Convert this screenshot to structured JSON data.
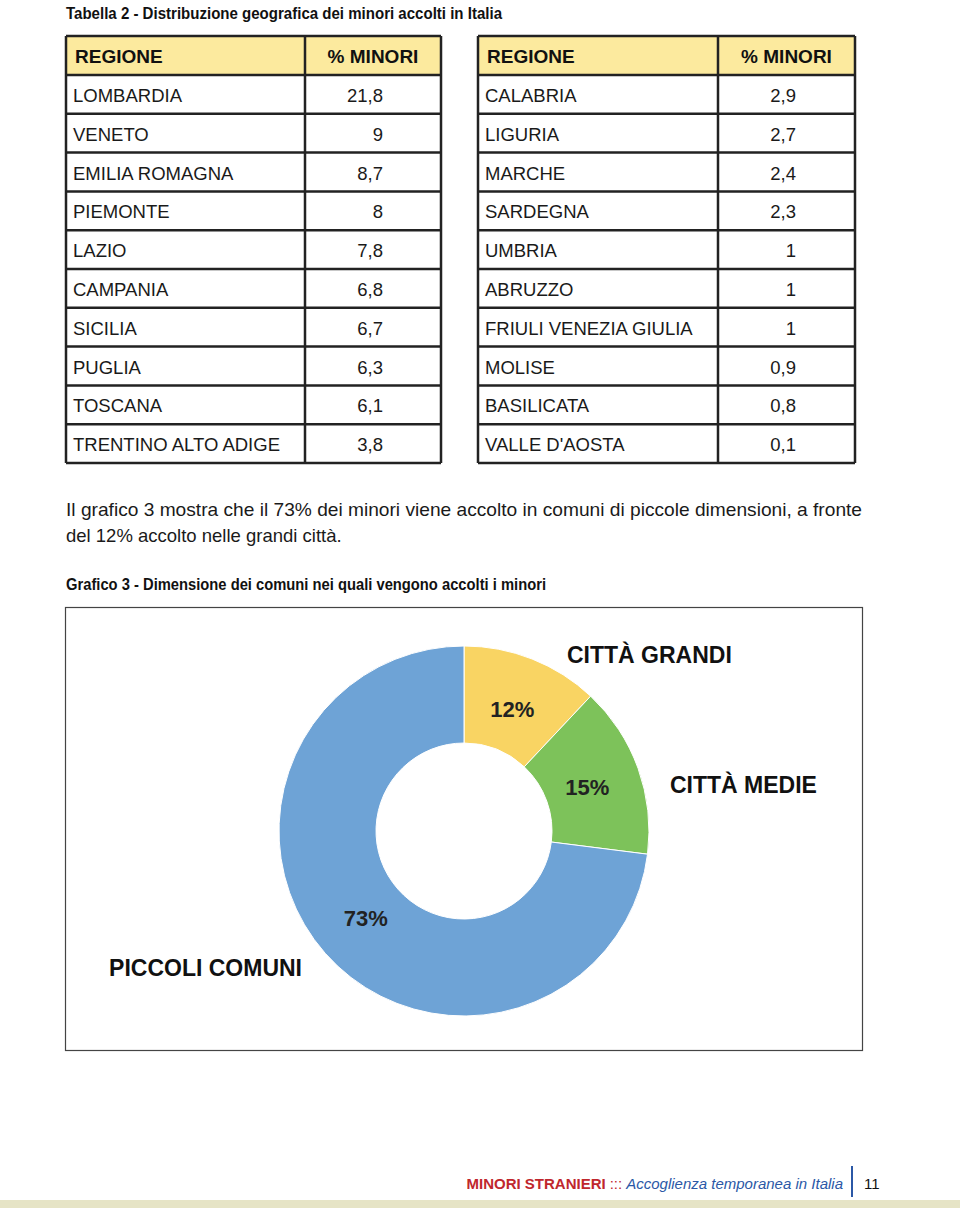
{
  "table": {
    "title": "Tabella 2 - Distribuzione geografica dei minori accolti in Italia",
    "header": [
      "REGIONE",
      "% MINORI"
    ],
    "rows": [
      [
        "LOMBARDIA",
        "21,8"
      ],
      [
        "VENETO",
        "9"
      ],
      [
        "EMILIA ROMAGNA",
        "8,7"
      ],
      [
        "PIEMONTE",
        "8"
      ],
      [
        "LAZIO",
        "7,8"
      ],
      [
        "CAMPANIA",
        "6,8"
      ],
      [
        "SICILIA",
        "6,7"
      ],
      [
        "PUGLIA",
        "6,3"
      ],
      [
        "TOSCANA",
        "6,1"
      ],
      [
        "TRENTINO ALTO ADIGE",
        "3,8"
      ],
      [
        "CALABRIA",
        "2,9"
      ],
      [
        "LIGURIA",
        "2,7"
      ],
      [
        "MARCHE",
        "2,4"
      ],
      [
        "SARDEGNA",
        "2,3"
      ],
      [
        "UMBRIA",
        "1"
      ],
      [
        "ABRUZZO",
        "1"
      ],
      [
        "FRIULI VENEZIA GIULIA",
        "1"
      ],
      [
        "MOLISE",
        "0,9"
      ],
      [
        "BASILICATA",
        "0,8"
      ],
      [
        "VALLE D'AOSTA",
        "0,1"
      ]
    ]
  },
  "paragraph": [
    "Il grafico 3 mostra che il 73% dei minori viene accolto in comuni di piccole dimensioni, a fronte",
    "del 12% accolto nelle grandi città."
  ],
  "chart_data": {
    "type": "donut",
    "title": "Grafico 3 - Dimensione dei comuni nei quali vengono accolti i minori",
    "categories": [
      "CITTÀ GRANDI",
      "CITTÀ MEDIE",
      "PICCOLI COMUNI"
    ],
    "values": [
      12,
      15,
      73
    ],
    "value_labels": [
      "12%",
      "15%",
      "73%"
    ],
    "colors": [
      "#f9d463",
      "#7dc25a",
      "#6ea3d6"
    ],
    "data_labels": true
  },
  "footer": {
    "brand": "MINORI STRANIERI",
    "separator": ":::",
    "subtitle": "Accoglienza temporanea in Italia",
    "page": 11
  }
}
